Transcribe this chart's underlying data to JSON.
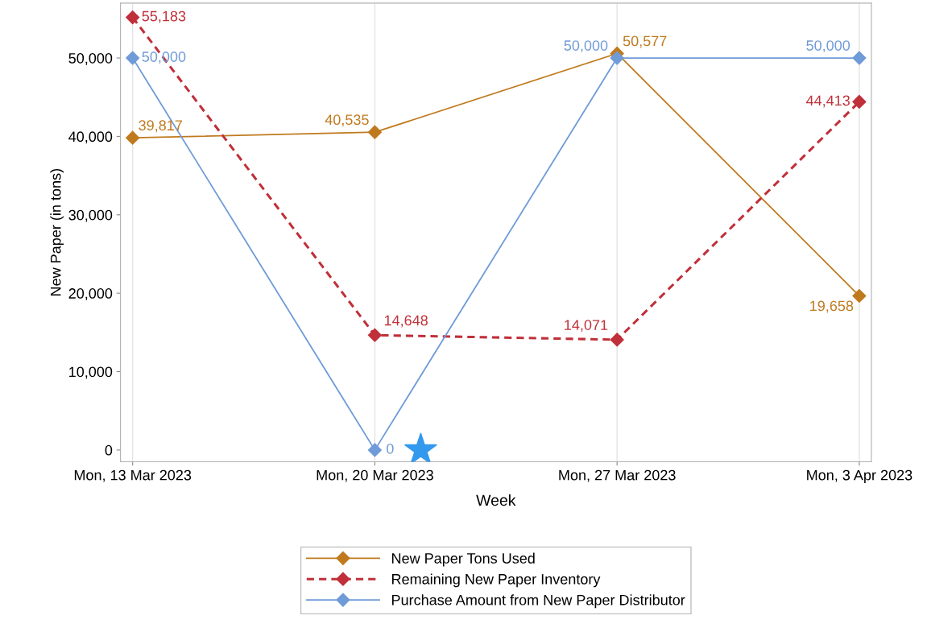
{
  "chart_data": {
    "type": "line",
    "xlabel": "Week",
    "ylabel": "New Paper (in tons)",
    "categories": [
      "Mon, 13 Mar 2023",
      "Mon, 20 Mar 2023",
      "Mon, 27 Mar 2023",
      "Mon, 3 Apr 2023"
    ],
    "series": [
      {
        "name": "New Paper Tons Used",
        "color": "#c07a1e",
        "values": [
          39817,
          40535,
          50577,
          19658
        ],
        "value_labels": [
          "39,817",
          "40,535",
          "50,577",
          "19,658"
        ],
        "line_style": "solid"
      },
      {
        "name": "Remaining New Paper Inventory",
        "color": "#c0303a",
        "values": [
          55183,
          14648,
          14071,
          44413
        ],
        "value_labels": [
          "55,183",
          "14,648",
          "14,071",
          "44,413"
        ],
        "line_style": "dashed"
      },
      {
        "name": "Purchase Amount from New Paper Distributor",
        "color": "#6f9bd8",
        "values": [
          50000,
          0,
          50000,
          50000
        ],
        "value_labels": [
          "50,000",
          "0",
          "50,000",
          "50,000"
        ],
        "line_style": "solid"
      }
    ],
    "ylim": [
      -1500,
      57000
    ],
    "yticks": [
      {
        "value": 0,
        "label": "0"
      },
      {
        "value": 10000,
        "label": "10,000"
      },
      {
        "value": 20000,
        "label": "20,000"
      },
      {
        "value": 30000,
        "label": "30,000"
      },
      {
        "value": 40000,
        "label": "40,000"
      },
      {
        "value": 50000,
        "label": "50,000"
      }
    ],
    "marker": "diamond",
    "grid": "x",
    "legend": "bottom"
  }
}
